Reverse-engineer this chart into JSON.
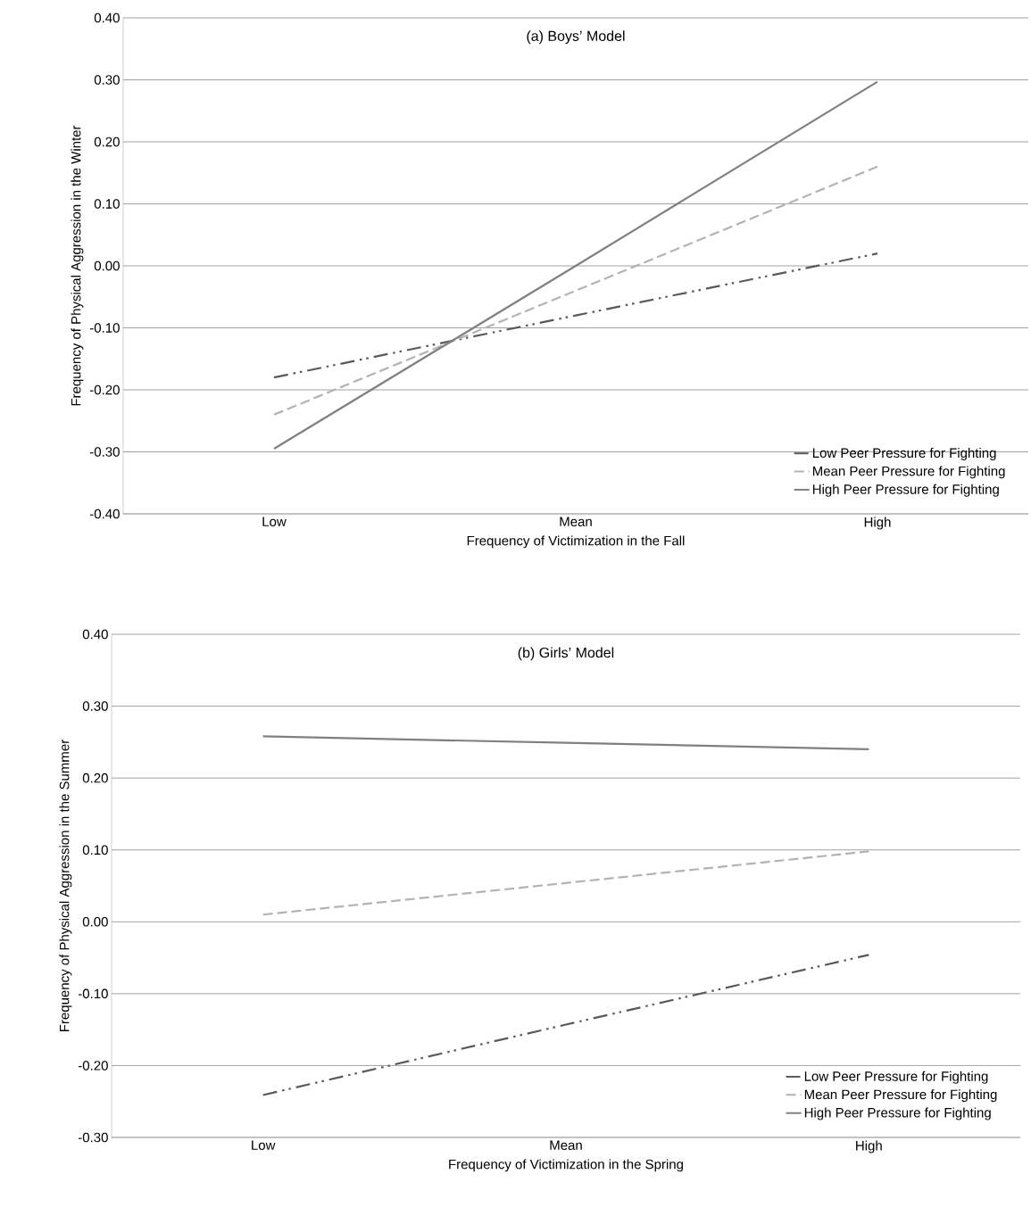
{
  "chart_data": [
    {
      "type": "line",
      "title": "(a) Boys’ Model",
      "xlabel": "Frequency of Victimization in the Fall",
      "ylabel": "Frequency of Physical Aggression in the Winter",
      "categories": [
        "Low",
        "Mean",
        "High"
      ],
      "series": [
        {
          "name": "Low Peer Pressure for Fighting",
          "color": "#595959",
          "line_style": "dashdotdot",
          "values": [
            -0.18,
            -0.08,
            0.02
          ]
        },
        {
          "name": "Mean Peer Pressure for Fighting",
          "color": "#b3b3b3",
          "line_style": "dashed",
          "values": [
            -0.24,
            -0.04,
            0.16
          ]
        },
        {
          "name": "High Peer Pressure for Fighting",
          "color": "#808080",
          "line_style": "solid",
          "values": [
            -0.295,
            0.0,
            0.297
          ]
        }
      ],
      "ylim": [
        -0.4,
        0.4
      ],
      "yticks": [
        {
          "value": -0.4,
          "label": "-0.40"
        },
        {
          "value": -0.3,
          "label": "-0.30"
        },
        {
          "value": -0.2,
          "label": "-0.20"
        },
        {
          "value": -0.1,
          "label": "-0.10"
        },
        {
          "value": 0,
          "label": "0.00"
        },
        {
          "value": 0.1,
          "label": "0.10"
        },
        {
          "value": 0.2,
          "label": "0.20"
        },
        {
          "value": 0.3,
          "label": "0.30"
        },
        {
          "value": 0.4,
          "label": "0.40"
        }
      ],
      "grid": "y",
      "legend": "bottom right"
    },
    {
      "type": "line",
      "title": "(b) Girls’ Model",
      "xlabel": "Frequency of Victimization in the Spring",
      "ylabel": "Frequency of Physical Aggression in the Summer",
      "categories": [
        "Low",
        "Mean",
        "High"
      ],
      "series": [
        {
          "name": "Low Peer Pressure for Fighting",
          "color": "#595959",
          "line_style": "dashdotdot",
          "values": [
            -0.241,
            -0.143,
            -0.046
          ]
        },
        {
          "name": "Mean Peer Pressure for Fighting",
          "color": "#b3b3b3",
          "line_style": "dashed",
          "values": [
            0.01,
            0.054,
            0.098
          ]
        },
        {
          "name": "High Peer Pressure for Fighting",
          "color": "#808080",
          "line_style": "solid",
          "values": [
            0.258,
            0.249,
            0.24
          ]
        }
      ],
      "ylim": [
        -0.3,
        0.4
      ],
      "yticks": [
        {
          "value": -0.3,
          "label": "-0.30"
        },
        {
          "value": -0.2,
          "label": "-0.20"
        },
        {
          "value": -0.1,
          "label": "-0.10"
        },
        {
          "value": 0,
          "label": "0.00"
        },
        {
          "value": 0.1,
          "label": "0.10"
        },
        {
          "value": 0.2,
          "label": "0.20"
        },
        {
          "value": 0.3,
          "label": "0.30"
        },
        {
          "value": 0.4,
          "label": "0.40"
        }
      ],
      "grid": "y",
      "legend": "bottom right"
    }
  ]
}
